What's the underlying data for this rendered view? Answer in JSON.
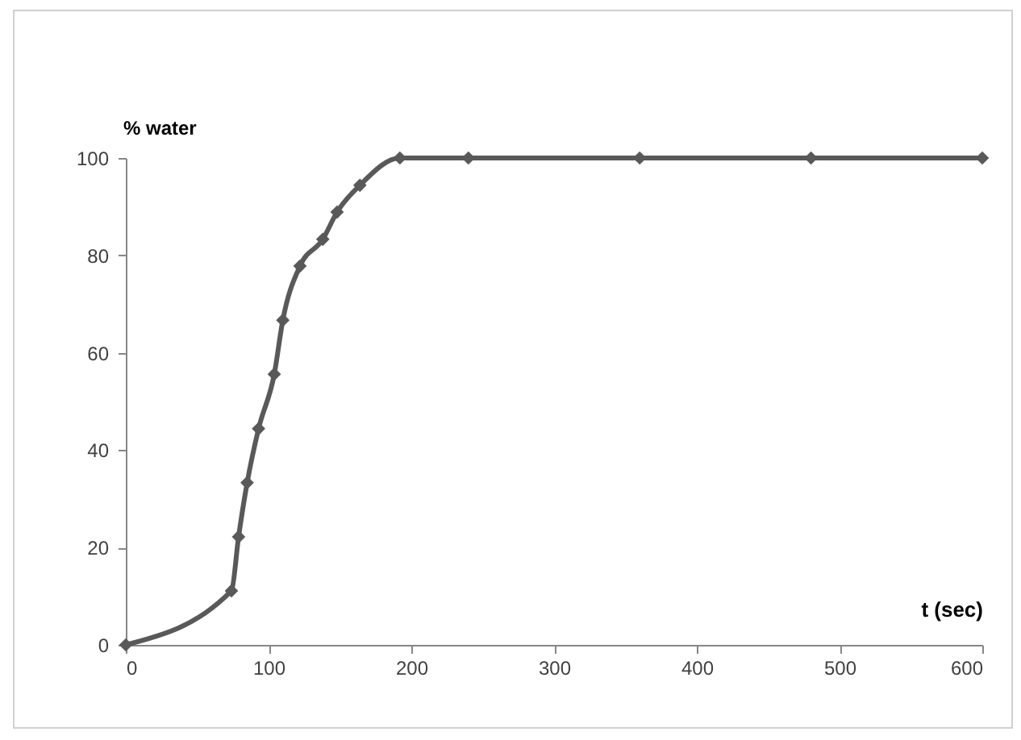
{
  "chart_data": {
    "type": "line",
    "xlabel": "t (sec)",
    "ylabel": "% water",
    "x": [
      0,
      74,
      79,
      85,
      93,
      104,
      110,
      122,
      138,
      148,
      164,
      192,
      240,
      360,
      480,
      600
    ],
    "series": [
      {
        "color": "#595959",
        "values": [
          0,
          11.1,
          22.2,
          33.3,
          44.4,
          55.6,
          66.7,
          77.8,
          83.3,
          88.9,
          94.4,
          100,
          100,
          100,
          100,
          100
        ]
      }
    ],
    "xlim": [
      0,
      600
    ],
    "xticks": [
      0,
      100,
      200,
      300,
      400,
      500,
      600
    ],
    "ylim": [
      0,
      100
    ],
    "yticks": [
      0,
      20,
      40,
      60,
      80,
      100
    ],
    "grid": false,
    "legend": false,
    "marker": "diamond",
    "line_style": "solid"
  }
}
